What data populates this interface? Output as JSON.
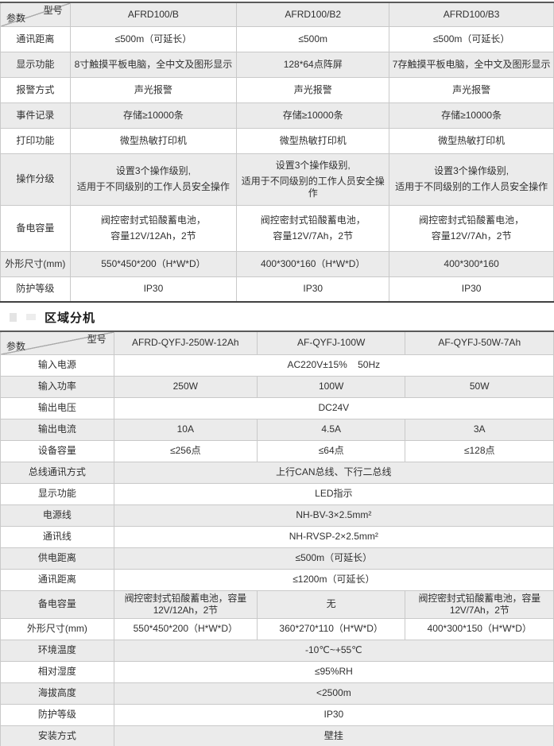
{
  "colors": {
    "row_shade": "#ebebeb",
    "thin_border": "#c9c9c9",
    "thick_border": "#4c4c4c",
    "text": "#303030"
  },
  "section_title": "区域分机",
  "table1": {
    "corner": {
      "top_right": "型号",
      "bottom_left": "参数"
    },
    "columns": [
      "AFRD100/B",
      "AFRD100/B2",
      "AFRD100/B3"
    ],
    "rows": [
      {
        "label": "通讯距离",
        "values": [
          "≤500m（可延长）",
          "≤500m",
          "≤500m（可延长）"
        ]
      },
      {
        "label": "显示功能",
        "values": [
          "8寸触摸平板电脑，全中文及图形显示",
          "128*64点阵屏",
          "7存触摸平板电脑，全中文及图形显示"
        ]
      },
      {
        "label": "报警方式",
        "values": [
          "声光报警",
          "声光报警",
          "声光报警"
        ]
      },
      {
        "label": "事件记录",
        "values": [
          "存储≥10000条",
          "存储≥10000条",
          "存储≥10000条"
        ]
      },
      {
        "label": "打印功能",
        "values": [
          "微型热敏打印机",
          "微型热敏打印机",
          "微型热敏打印机"
        ]
      },
      {
        "label": "操作分级",
        "tall": true,
        "values": [
          [
            "设置3个操作级别,",
            "适用于不同级别的工作人员安全操作"
          ],
          [
            "设置3个操作级别,",
            "适用于不同级别的工作人员安全操作"
          ],
          [
            "设置3个操作级别,",
            "适用于不同级别的工作人员安全操作"
          ]
        ]
      },
      {
        "label": "备电容量",
        "tall": true,
        "values": [
          [
            "阀控密封式铅酸蓄电池，",
            "容量12V/12Ah，2节"
          ],
          [
            "阀控密封式铅酸蓄电池，",
            "容量12V/7Ah，2节"
          ],
          [
            "阀控密封式铅酸蓄电池，",
            "容量12V/7Ah，2节"
          ]
        ]
      },
      {
        "label": "外形尺寸(mm)",
        "values": [
          "550*450*200（H*W*D）",
          "400*300*160（H*W*D）",
          "400*300*160"
        ]
      },
      {
        "label": "防护等级",
        "values": [
          "IP30",
          "IP30",
          "IP30"
        ]
      }
    ]
  },
  "table2": {
    "corner": {
      "top_right": "型号",
      "bottom_left": "参数"
    },
    "columns": [
      "AFRD-QYFJ-250W-12Ah",
      "AF-QYFJ-100W",
      "AF-QYFJ-50W-7Ah"
    ],
    "rows": [
      {
        "label": "输入电源",
        "merged": "AC220V±15%    50Hz"
      },
      {
        "label": "输入功率",
        "values": [
          "250W",
          "100W",
          "50W"
        ]
      },
      {
        "label": "输出电压",
        "merged": "DC24V"
      },
      {
        "label": "输出电流",
        "values": [
          "10A",
          "4.5A",
          "3A"
        ]
      },
      {
        "label": "设备容量",
        "values": [
          "≤256点",
          "≤64点",
          "≤128点"
        ]
      },
      {
        "label": "总线通讯方式",
        "merged": "上行CAN总线、下行二总线"
      },
      {
        "label": "显示功能",
        "merged": "LED指示"
      },
      {
        "label": "电源线",
        "merged": "NH-BV-3×2.5mm²"
      },
      {
        "label": "通讯线",
        "merged": "NH-RVSP-2×2.5mm²"
      },
      {
        "label": "供电距离",
        "merged": "≤500m（可延长）"
      },
      {
        "label": "通讯距离",
        "merged": "≤1200m（可延长）"
      },
      {
        "label": "备电容量",
        "values": [
          {
            "text": "阀控密封式铅酸蓄电池，容量12V/12Ah，2节",
            "small": true
          },
          {
            "text": "无"
          },
          {
            "text": "阀控密封式铅酸蓄电池，容量12V/7Ah，2节",
            "small": true
          }
        ]
      },
      {
        "label": "外形尺寸(mm)",
        "values": [
          "550*450*200（H*W*D）",
          "360*270*110（H*W*D）",
          "400*300*150（H*W*D）"
        ]
      },
      {
        "label": "环境温度",
        "merged": "-10℃~+55℃"
      },
      {
        "label": "相对湿度",
        "merged": "≤95%RH"
      },
      {
        "label": "海拔高度",
        "merged": "<2500m"
      },
      {
        "label": "防护等级",
        "merged": "IP30"
      },
      {
        "label": "安装方式",
        "merged": "壁挂"
      }
    ]
  }
}
